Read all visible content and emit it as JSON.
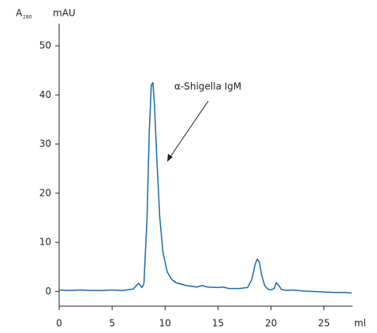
{
  "chart_data": {
    "type": "line",
    "y_label": "A",
    "y_label_subscript": "280",
    "y_unit": "mAU",
    "x_unit": "ml",
    "annotation": "α-Shigella IgM",
    "xlim": [
      0,
      27.7
    ],
    "ylim": [
      -3,
      54.5
    ],
    "xticks": [
      0,
      5,
      10,
      15,
      20,
      25
    ],
    "yticks": [
      0,
      10,
      20,
      30,
      40,
      50
    ],
    "series": [
      {
        "color": "#1a6aaa",
        "x": [
          0,
          1,
          2,
          3,
          4,
          5,
          6,
          7,
          7.5,
          7.8,
          8.0,
          8.3,
          8.5,
          8.7,
          8.85,
          9.0,
          9.2,
          9.5,
          9.8,
          10.2,
          10.6,
          11,
          12,
          13,
          13.5,
          14,
          15,
          15.5,
          16,
          17,
          17.8,
          18.2,
          18.5,
          18.7,
          18.9,
          19.1,
          19.4,
          19.7,
          20,
          20.3,
          20.5,
          20.7,
          21,
          21.5,
          22,
          23,
          24,
          25,
          26,
          27,
          27.6
        ],
        "values": [
          0.3,
          0.2,
          0.3,
          0.2,
          0.2,
          0.3,
          0.2,
          0.5,
          1.7,
          0.8,
          1.5,
          15,
          32,
          42,
          42.5,
          38,
          28,
          15,
          8,
          4,
          2.5,
          1.8,
          1.2,
          0.9,
          1.2,
          0.9,
          0.8,
          0.9,
          0.6,
          0.6,
          0.8,
          2.5,
          5.5,
          6.6,
          6.0,
          3.5,
          1.2,
          0.5,
          0.3,
          0.6,
          1.8,
          1.3,
          0.4,
          0.2,
          0.3,
          0.1,
          0.0,
          -0.1,
          -0.2,
          -0.2,
          -0.3
        ]
      }
    ]
  }
}
